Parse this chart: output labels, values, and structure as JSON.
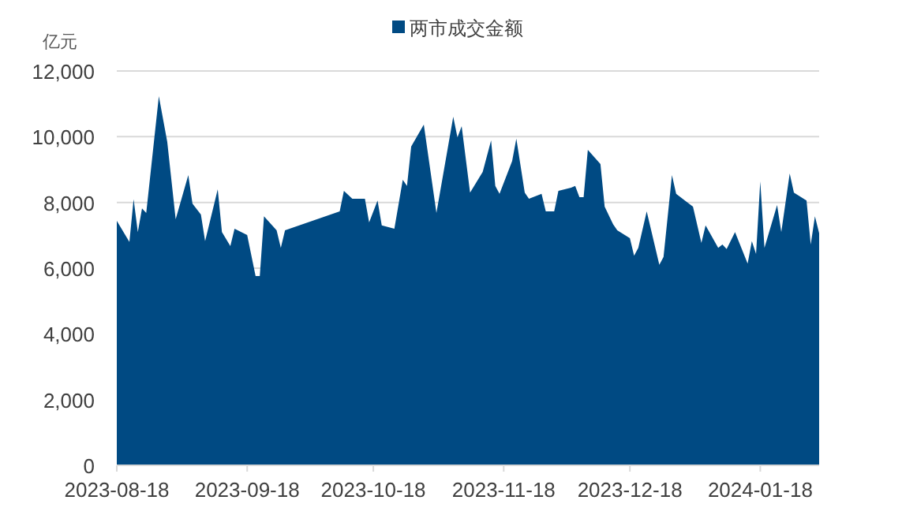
{
  "chart_data": {
    "type": "area",
    "ylabel": "亿元",
    "x": [
      "2023-08-18",
      "2023-08-21",
      "2023-08-22",
      "2023-08-23",
      "2023-08-24",
      "2023-08-25",
      "2023-08-28",
      "2023-08-30",
      "2023-09-01",
      "2023-09-04",
      "2023-09-05",
      "2023-09-07",
      "2023-09-08",
      "2023-09-11",
      "2023-09-12",
      "2023-09-14",
      "2023-09-15",
      "2023-09-18",
      "2023-09-20",
      "2023-09-21",
      "2023-09-22",
      "2023-09-25",
      "2023-09-26",
      "2023-09-27",
      "2023-10-10",
      "2023-10-11",
      "2023-10-13",
      "2023-10-16",
      "2023-10-17",
      "2023-10-19",
      "2023-10-20",
      "2023-10-23",
      "2023-10-25",
      "2023-10-26",
      "2023-10-27",
      "2023-10-30",
      "2023-11-02",
      "2023-11-06",
      "2023-11-07",
      "2023-11-08",
      "2023-11-10",
      "2023-11-13",
      "2023-11-15",
      "2023-11-16",
      "2023-11-17",
      "2023-11-20",
      "2023-11-21",
      "2023-11-23",
      "2023-11-24",
      "2023-11-27",
      "2023-11-28",
      "2023-11-30",
      "2023-12-01",
      "2023-12-04",
      "2023-12-05",
      "2023-12-06",
      "2023-12-07",
      "2023-12-08",
      "2023-12-11",
      "2023-12-12",
      "2023-12-14",
      "2023-12-15",
      "2023-12-18",
      "2023-12-19",
      "2023-12-20",
      "2023-12-22",
      "2023-12-25",
      "2023-12-26",
      "2023-12-28",
      "2023-12-29",
      "2024-01-02",
      "2024-01-04",
      "2024-01-05",
      "2024-01-08",
      "2024-01-09",
      "2024-01-10",
      "2024-01-12",
      "2024-01-15",
      "2024-01-16",
      "2024-01-17",
      "2024-01-18",
      "2024-01-19",
      "2024-01-22",
      "2024-01-23",
      "2024-01-25",
      "2024-01-26",
      "2024-01-29",
      "2024-01-30",
      "2024-01-31",
      "2024-02-01"
    ],
    "series": [
      {
        "name": "两市成交金额",
        "color": "#004a83",
        "values": [
          7440,
          6800,
          8100,
          7100,
          7820,
          7680,
          11230,
          9840,
          7490,
          8830,
          7960,
          7630,
          6820,
          8400,
          7100,
          6670,
          7200,
          7010,
          5760,
          5760,
          7580,
          7150,
          6620,
          7150,
          7730,
          8350,
          8110,
          8110,
          7390,
          8060,
          7300,
          7200,
          8690,
          8500,
          9700,
          10370,
          7680,
          10610,
          9980,
          10320,
          8300,
          8930,
          9890,
          8500,
          8260,
          9260,
          9940,
          8300,
          8110,
          8260,
          7730,
          7730,
          8350,
          8450,
          8500,
          8160,
          8160,
          9600,
          9170,
          7870,
          7340,
          7150,
          6910,
          6380,
          6620,
          7730,
          6100,
          6340,
          8830,
          8260,
          7870,
          6770,
          7300,
          6620,
          6720,
          6580,
          7100,
          6140,
          6820,
          6430,
          8640,
          6620,
          7920,
          7100,
          8880,
          8300,
          8060,
          6720,
          7580,
          7060
        ]
      }
    ],
    "xlim": [
      "2023-08-18",
      "2024-02-01"
    ],
    "xticks": [
      "2023-08-18",
      "2023-09-18",
      "2023-10-18",
      "2023-11-18",
      "2023-12-18",
      "2024-01-18"
    ],
    "ylim": [
      0,
      12000
    ],
    "yticks": [
      {
        "value": 0,
        "label": "0"
      },
      {
        "value": 2000,
        "label": "2,000"
      },
      {
        "value": 4000,
        "label": "4,000"
      },
      {
        "value": 6000,
        "label": "6,000"
      },
      {
        "value": 8000,
        "label": "8,000"
      },
      {
        "value": 10000,
        "label": "10,000"
      },
      {
        "value": 12000,
        "label": "12,000"
      }
    ],
    "grid": "y",
    "legend": "top"
  }
}
